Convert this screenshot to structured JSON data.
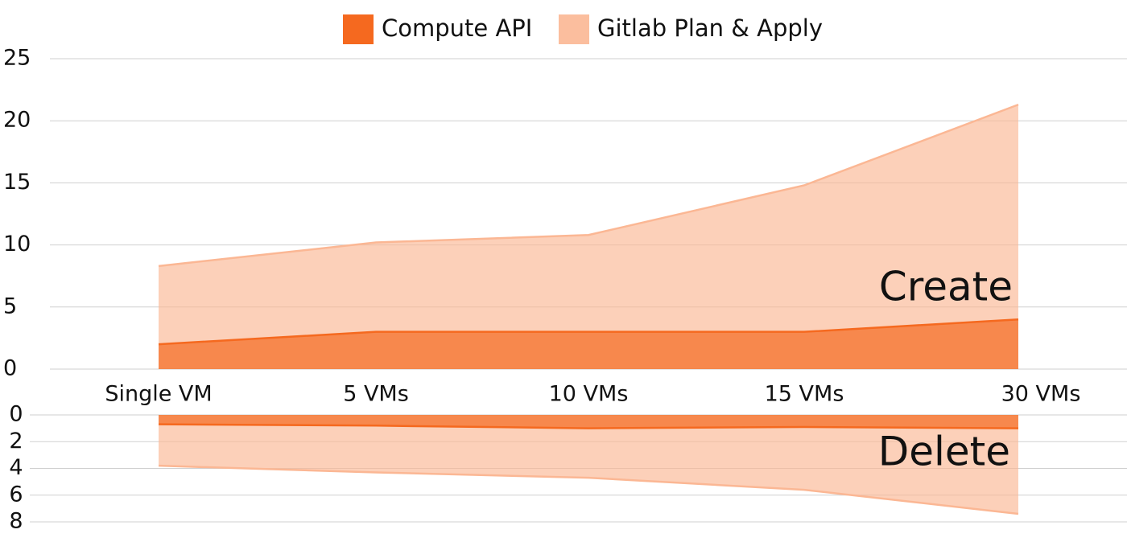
{
  "chart_data": [
    {
      "type": "area",
      "categories": [
        "Single VM",
        "5 VMs",
        "10 VMs",
        "15 VMs",
        "30 VMs"
      ],
      "series": [
        {
          "name": "Compute API",
          "color": "#f5691f",
          "values": [
            2.0,
            3.0,
            3.0,
            3.0,
            4.0
          ]
        },
        {
          "name": "Gitlab Plan & Apply",
          "color": "#fbb794",
          "values": [
            8.3,
            10.2,
            10.8,
            14.8,
            21.3
          ]
        }
      ],
      "annotation": "Create",
      "ylim": [
        0,
        25
      ],
      "yticks": [
        0,
        5,
        10,
        15,
        20,
        25
      ],
      "grid": true
    },
    {
      "type": "area",
      "series": [
        {
          "color": "#f5691f",
          "values": [
            0.7,
            0.8,
            1.0,
            0.9,
            1.0
          ]
        },
        {
          "color": "#fbb794",
          "values": [
            3.8,
            4.3,
            4.7,
            5.6,
            7.4
          ]
        }
      ],
      "annotation": "Delete",
      "ylim": [
        0,
        8
      ],
      "y_inverted": true,
      "yticks": [
        0,
        2,
        4,
        6,
        8
      ],
      "grid": true
    }
  ]
}
